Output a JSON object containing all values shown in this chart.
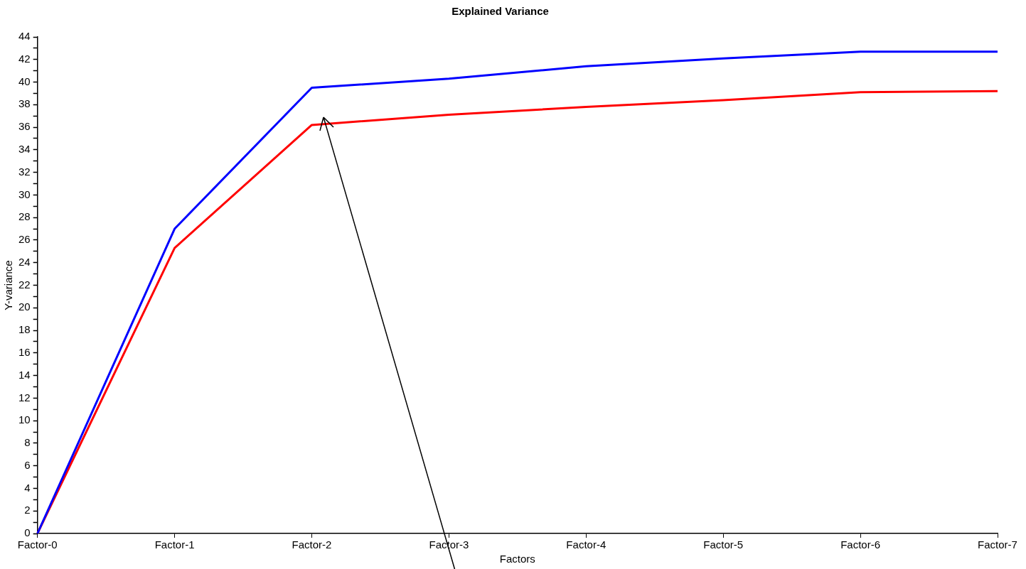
{
  "chart_data": {
    "type": "line",
    "title": "Explained Variance",
    "xlabel": "Factors",
    "ylabel": "Y-variance",
    "categories": [
      "Factor-0",
      "Factor-1",
      "Factor-2",
      "Factor-3",
      "Factor-4",
      "Factor-5",
      "Factor-6",
      "Factor-7"
    ],
    "series": [
      {
        "color": "#0000ff",
        "values": [
          0,
          27.0,
          39.5,
          40.3,
          41.4,
          42.1,
          42.7,
          42.7
        ]
      },
      {
        "color": "#ff0000",
        "values": [
          0,
          25.3,
          36.2,
          37.1,
          37.8,
          38.4,
          39.1,
          39.2
        ]
      }
    ],
    "ylim": [
      0,
      44
    ],
    "yticks": [
      0,
      {
        "value": 1,
        "label": null
      },
      2,
      {
        "value": 3,
        "label": null
      },
      4,
      {
        "value": 5,
        "label": null
      },
      6,
      {
        "value": 7,
        "label": null
      },
      8,
      {
        "value": 9,
        "label": null
      },
      10,
      {
        "value": 11,
        "label": null
      },
      12,
      {
        "value": 13,
        "label": null
      },
      14,
      {
        "value": 15,
        "label": null
      },
      16,
      {
        "value": 17,
        "label": null
      },
      18,
      {
        "value": 19,
        "label": null
      },
      20,
      {
        "value": 21,
        "label": null
      },
      22,
      {
        "value": 23,
        "label": null
      },
      24,
      {
        "value": 25,
        "label": null
      },
      26,
      {
        "value": 27,
        "label": null
      },
      28,
      {
        "value": 29,
        "label": null
      },
      30,
      {
        "value": 31,
        "label": null
      },
      32,
      {
        "value": 33,
        "label": null
      },
      34,
      {
        "value": 35,
        "label": null
      },
      36,
      {
        "value": 37,
        "label": null
      },
      38,
      {
        "value": 39,
        "label": null
      },
      40,
      {
        "value": 41,
        "label": null
      },
      42,
      {
        "value": 43,
        "label": null
      },
      44
    ],
    "grid": false,
    "legend": false,
    "marker": "none",
    "line_style": "solid"
  }
}
